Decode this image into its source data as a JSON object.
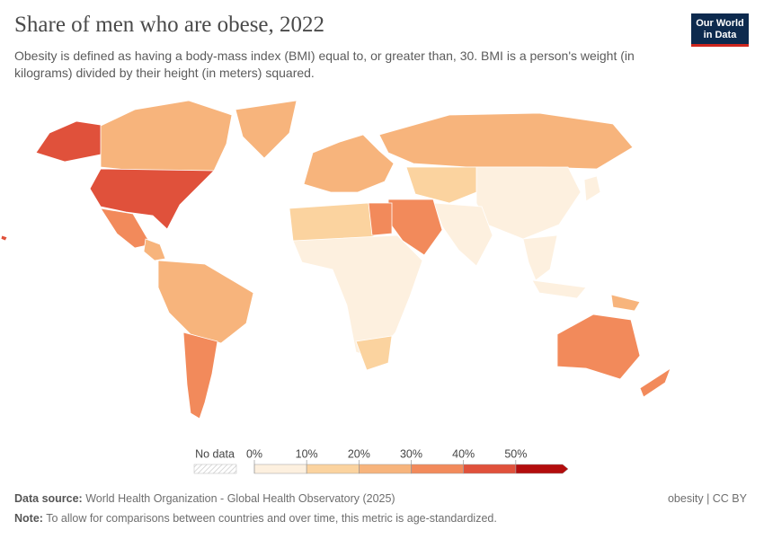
{
  "header": {
    "title": "Share of men who are obese, 2022",
    "subtitle": "Obesity is defined as having a body-mass index (BMI) equal to, or greater than, 30. BMI is a person's weight (in kilograms) divided by their height (in meters) squared.",
    "logo": [
      "Our World",
      "in Data"
    ]
  },
  "map": {
    "values": [
      40,
      24,
      42,
      33,
      25,
      20,
      22,
      35,
      24,
      24,
      17,
      8,
      5,
      36,
      15,
      5,
      14,
      6,
      5,
      32,
      34,
      5,
      42,
      32,
      27
    ],
    "legend": {
      "no_data": "No data",
      "ticks": [
        {
          "value": 0,
          "label": "0%"
        },
        {
          "value": 10,
          "label": "10%"
        },
        {
          "value": 20,
          "label": "20%"
        },
        {
          "value": 30,
          "label": "30%"
        },
        {
          "value": 40,
          "label": "40%"
        },
        {
          "value": 50,
          "label": "50%"
        }
      ],
      "lim": [
        0,
        60
      ],
      "colors": [
        "#fdf0df",
        "#fbd39f",
        "#f7b47c",
        "#f28a5b",
        "#e0513b",
        "#b30d0d"
      ]
    }
  },
  "footer": {
    "source_label": "Data source:",
    "source": "World Health Organization - Global Health Observatory (2025)",
    "credit": "obesity | CC BY",
    "note_label": "Note:",
    "note": "To allow for comparisons between countries and over time, this metric is age-standardized."
  }
}
